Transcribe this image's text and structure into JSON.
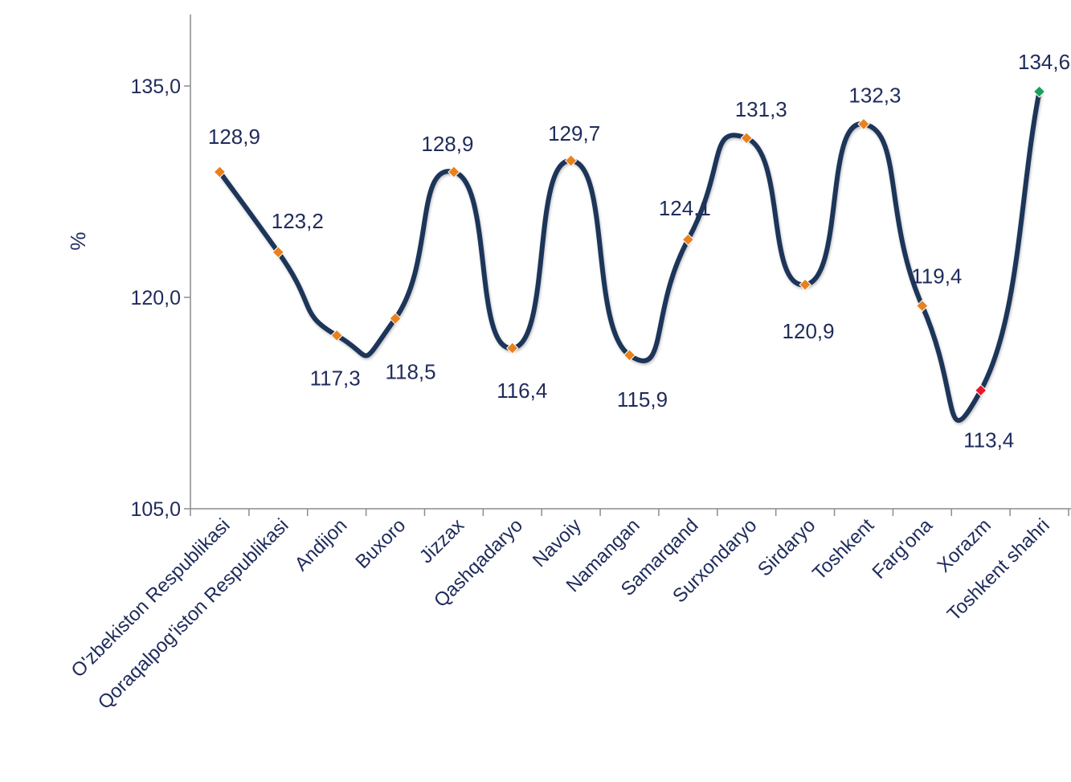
{
  "chart_data": {
    "type": "line",
    "title": "",
    "xlabel": "",
    "ylabel": "%",
    "ylim": [
      105.0,
      140.0
    ],
    "yticks": [
      "105,0",
      "120,0",
      "135,0"
    ],
    "ytick_values": [
      105,
      120,
      135
    ],
    "grid": false,
    "legend": "none",
    "smooth": true,
    "colors": {
      "line": "#1f3459",
      "marker": "#e8811e",
      "marker_min": "#e8192c",
      "marker_max": "#1aa05a",
      "axis": "#8c8c8c",
      "text": "#1f2b5c"
    },
    "categories": [
      "O'zbekiston Respublikasi",
      "Qoraqalpog'iston Respublikasi",
      "Andijon",
      "Buxoro",
      "Jizzax",
      "Qashqadaryo",
      "Navoiy",
      "Namangan",
      "Samarqand",
      "Surxondaryo",
      "Sirdaryo",
      "Toshkent",
      "Farg'ona",
      "Xorazm",
      "Toshkent shahri"
    ],
    "series": [
      {
        "values": [
          128.9,
          123.2,
          117.3,
          118.5,
          128.9,
          116.4,
          129.7,
          115.9,
          124.1,
          131.3,
          120.9,
          132.3,
          119.4,
          113.4,
          134.6
        ],
        "labels": [
          "128,9",
          "123,2",
          "117,3",
          "118,5",
          "128,9",
          "116,4",
          "129,7",
          "115,9",
          "124,1",
          "131,3",
          "120,9",
          "132,3",
          "119,4",
          "113,4",
          "134,6"
        ]
      }
    ]
  }
}
